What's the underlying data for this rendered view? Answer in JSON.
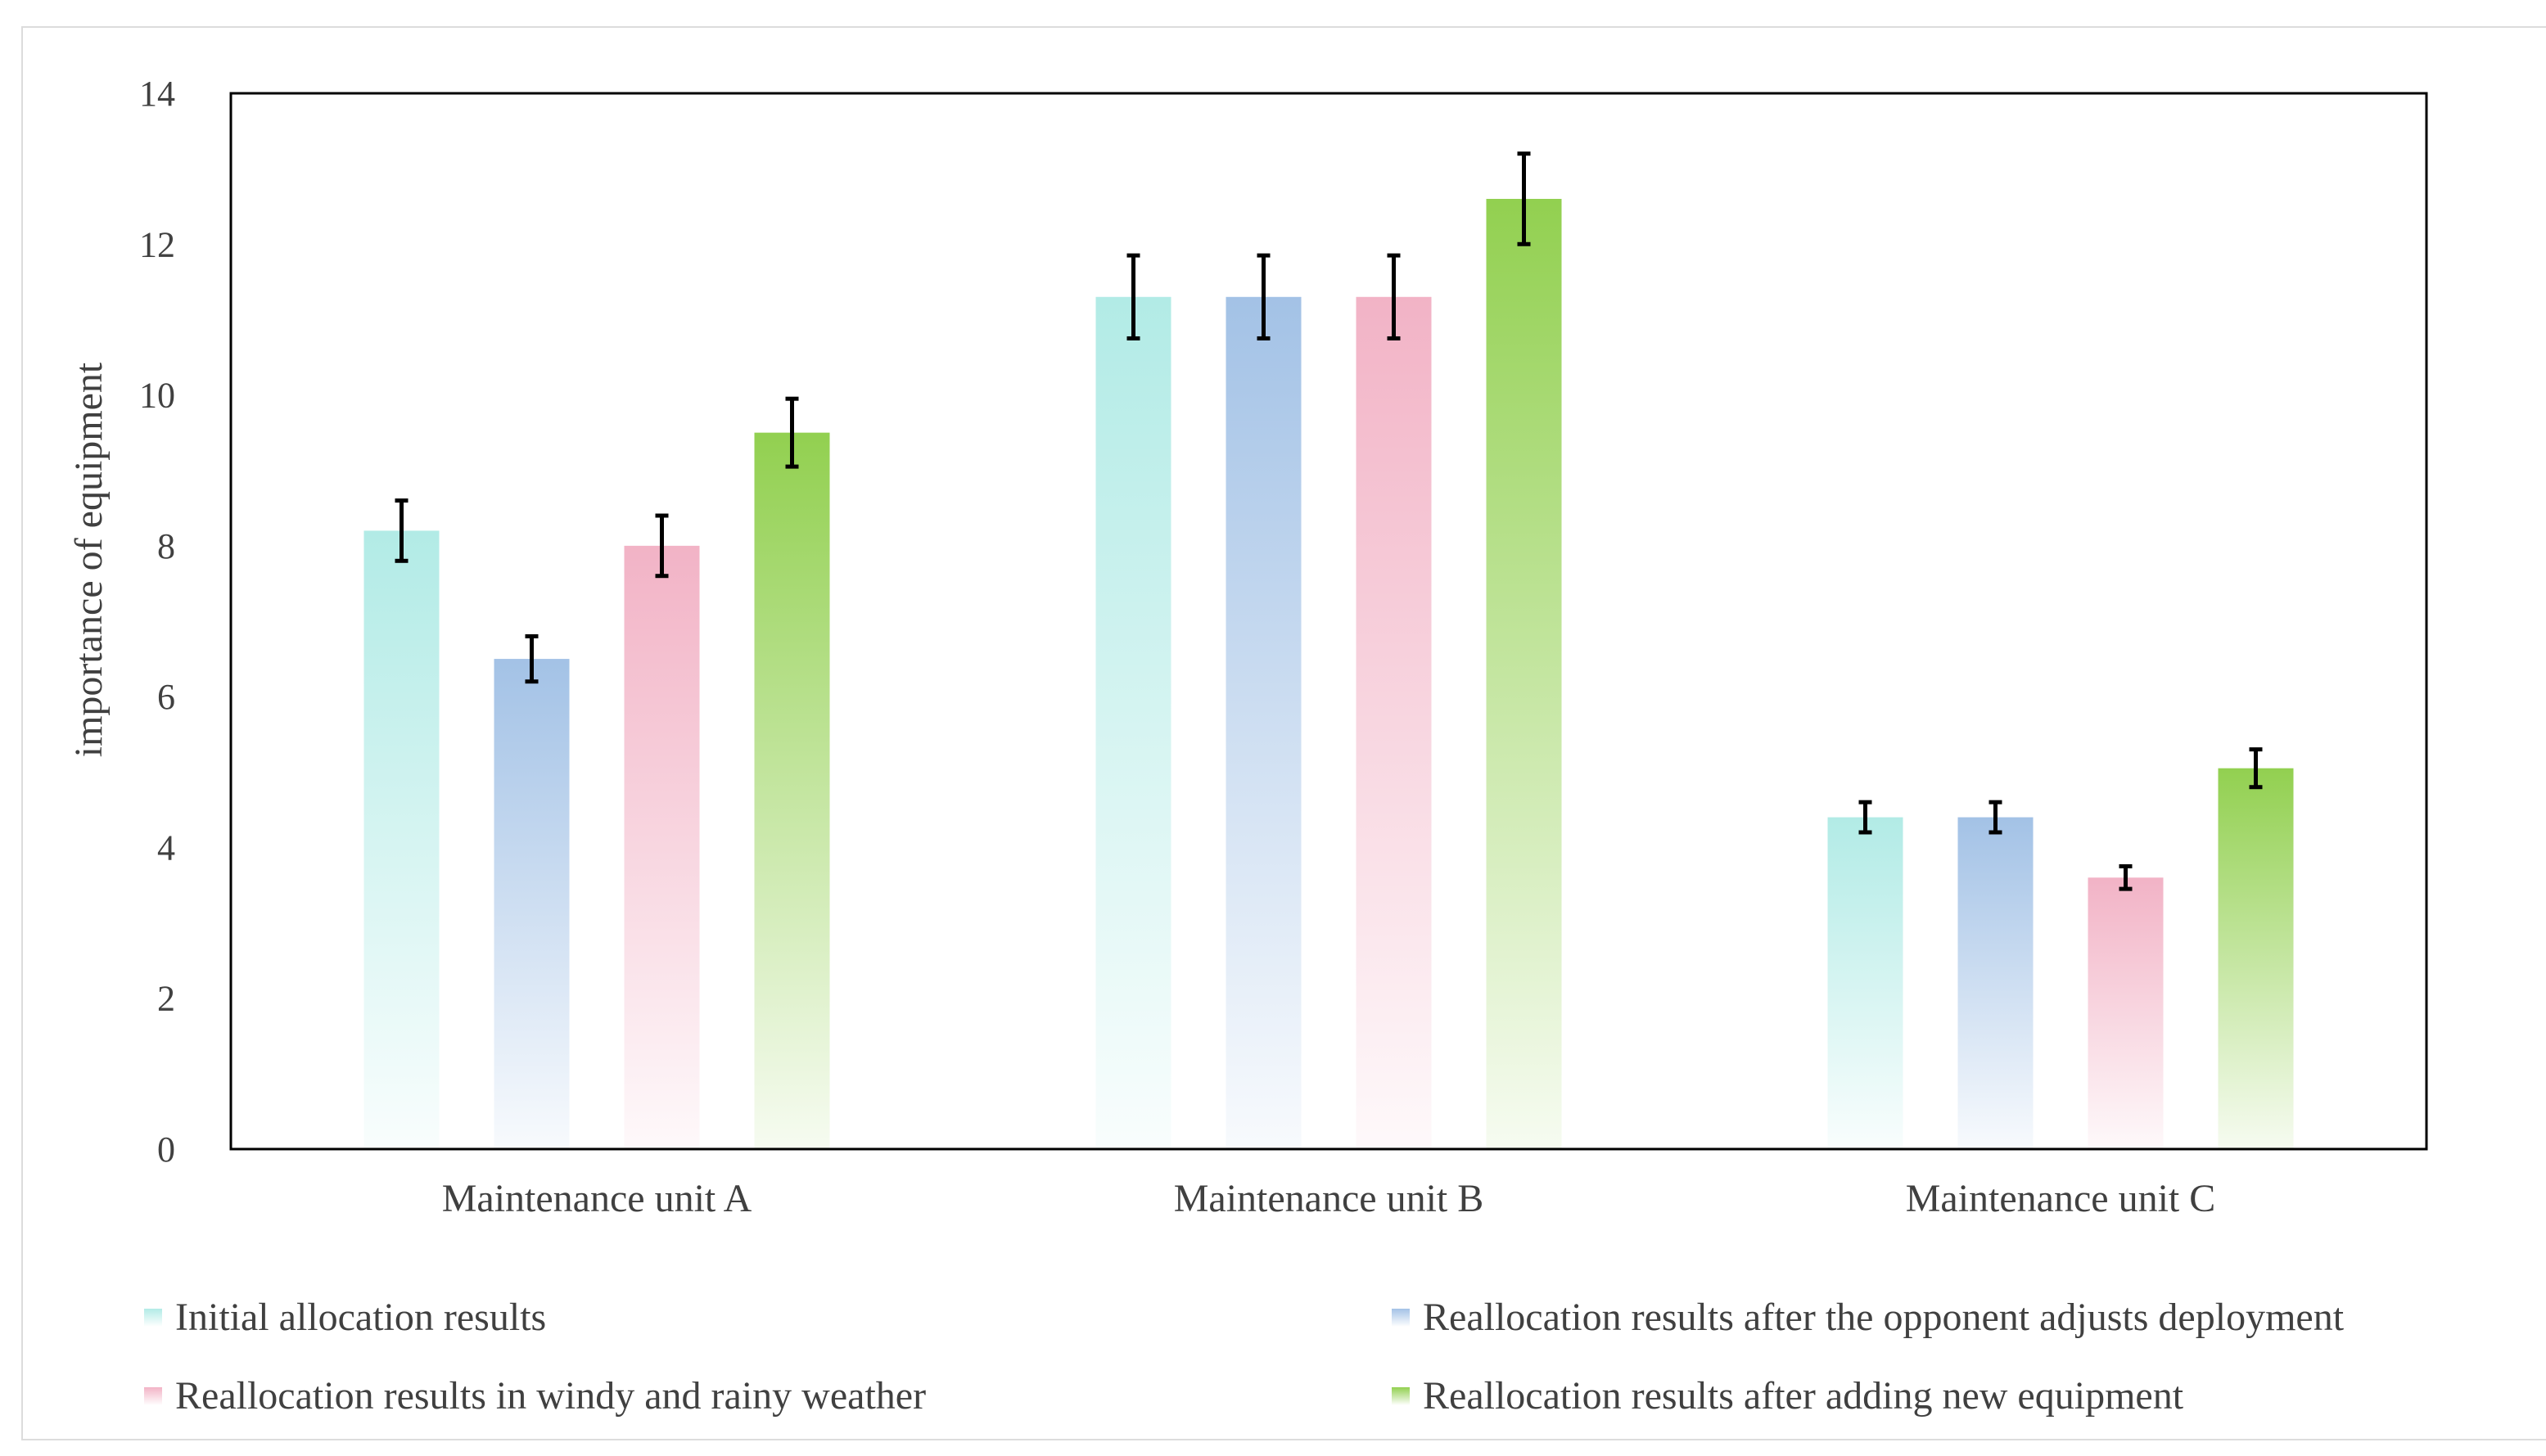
{
  "chart_data": {
    "type": "bar",
    "title": "",
    "xlabel": "",
    "ylabel": "importance of equipment",
    "ylim": [
      0,
      14
    ],
    "yticks": [
      0,
      2,
      4,
      6,
      8,
      10,
      12,
      14
    ],
    "ytick_labels": [
      "0",
      "2",
      "4",
      "6",
      "8",
      "10",
      "12",
      "14"
    ],
    "grid": false,
    "legend_position": "bottom",
    "categories": [
      "Maintenance unit A",
      "Maintenance unit B",
      "Maintenance unit C"
    ],
    "series": [
      {
        "name": "Initial allocation results",
        "color": "#b2ebe6",
        "values": [
          8.2,
          11.3,
          4.4
        ],
        "errors": [
          0.4,
          0.55,
          0.2
        ]
      },
      {
        "name": "Reallocation results after the opponent adjusts deployment",
        "color": "#a3c2e6",
        "values": [
          6.5,
          11.3,
          4.4
        ],
        "errors": [
          0.3,
          0.55,
          0.2
        ]
      },
      {
        "name": "Reallocation results in windy and rainy weather",
        "color": "#f2b3c6",
        "values": [
          8.0,
          11.3,
          3.6
        ],
        "errors": [
          0.4,
          0.55,
          0.15
        ]
      },
      {
        "name": "Reallocation results after adding new equipment",
        "color": "#92d050",
        "values": [
          9.5,
          12.6,
          5.05
        ],
        "errors": [
          0.45,
          0.6,
          0.25
        ]
      }
    ]
  }
}
